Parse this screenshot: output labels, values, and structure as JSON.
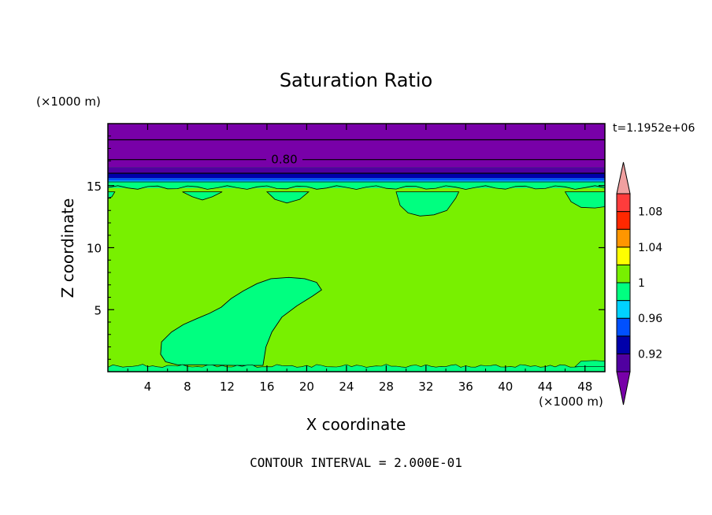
{
  "chart_data": {
    "type": "contour",
    "title": "Saturation Ratio",
    "xlabel": "X coordinate",
    "ylabel": "Z coordinate",
    "x_unit": "(×1000 m)",
    "y_unit": "(×1000 m)",
    "time_label": "t=1.1952e+06",
    "footer": "CONTOUR INTERVAL = 2.000E-01",
    "xlim": [
      0,
      50
    ],
    "ylim": [
      0,
      20
    ],
    "x_ticks": [
      4,
      8,
      12,
      16,
      20,
      24,
      28,
      32,
      36,
      40,
      44,
      48
    ],
    "y_ticks": [
      5,
      10,
      15
    ],
    "contour_label": "0.80",
    "contour_lines_z": [
      18.7,
      17.1,
      16.0
    ],
    "colorbar": {
      "levels": [
        0.9,
        0.92,
        0.94,
        0.96,
        0.98,
        1.0,
        1.02,
        1.04,
        1.06,
        1.08,
        1.1
      ],
      "tick_labels": [
        "0.92",
        "0.96",
        "1",
        "1.04",
        "1.08"
      ],
      "colors": [
        "#7800a8",
        "#5000a0",
        "#0000aa",
        "#0050ff",
        "#00d2ff",
        "#00ff80",
        "#78f000",
        "#ffff00",
        "#ff9600",
        "#ff2800",
        "#ff3c3c",
        "#f0a0a0"
      ]
    },
    "regions": [
      {
        "name": "background",
        "color": "#78f000"
      },
      {
        "name": "upper-dry-layer",
        "z_range": [
          16.5,
          20
        ],
        "color": "#7800a8"
      },
      {
        "name": "band-0.92",
        "z_range": [
          16.0,
          16.5
        ],
        "color": "#5000a0"
      },
      {
        "name": "band-0.94",
        "z_range": [
          15.6,
          16.0
        ],
        "color": "#0000aa"
      },
      {
        "name": "band-0.96",
        "z_range": [
          15.4,
          15.6
        ],
        "color": "#0050ff"
      },
      {
        "name": "band-0.98",
        "z_range": [
          15.2,
          15.4
        ],
        "color": "#00d2ff"
      },
      {
        "name": "band-1.00",
        "z_range": [
          14.8,
          15.2
        ],
        "color": "#00ff80"
      },
      {
        "name": "cloud-lobe",
        "x_range": [
          5,
          21.5
        ],
        "z_range": [
          0.5,
          7.6
        ],
        "color": "#00ff80"
      },
      {
        "name": "subsat-pocket-1",
        "x_range": [
          7,
          22
        ],
        "z_range": [
          13.8,
          14.5
        ],
        "color": "#00ff80"
      },
      {
        "name": "subsat-pocket-2",
        "x_range": [
          27,
          35.5
        ],
        "z_range": [
          12.5,
          14.5
        ],
        "color": "#00ff80"
      },
      {
        "name": "subsat-pocket-3",
        "x_range": [
          44,
          50
        ],
        "z_range": [
          13.2,
          14.5
        ],
        "color": "#00ff80"
      }
    ]
  }
}
